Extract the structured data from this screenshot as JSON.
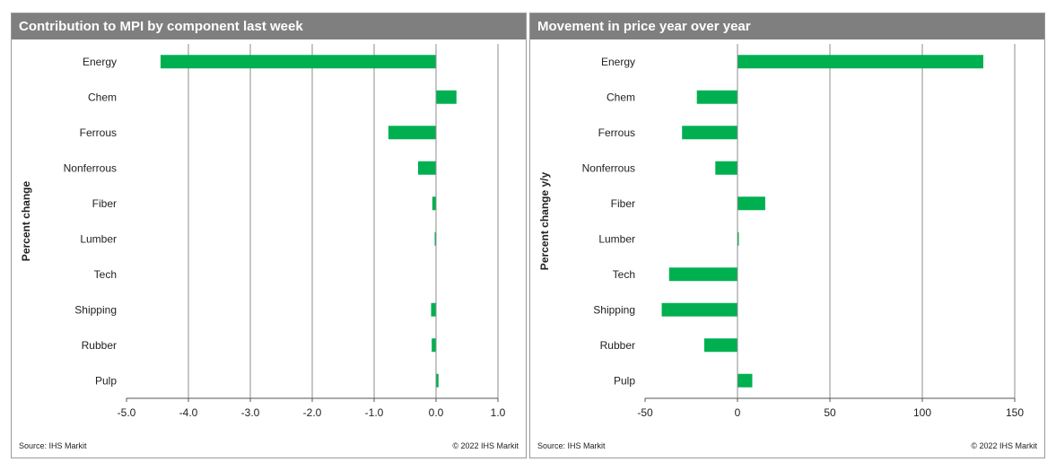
{
  "chart_data": [
    {
      "type": "bar",
      "orientation": "horizontal",
      "title": "Contribution to MPI by component last week",
      "xlabel": "",
      "ylabel": "Percent change",
      "categories": [
        "Energy",
        "Chem",
        "Ferrous",
        "Nonferrous",
        "Fiber",
        "Lumber",
        "Tech",
        "Shipping",
        "Rubber",
        "Pulp"
      ],
      "values": [
        -4.45,
        0.33,
        -0.77,
        -0.29,
        -0.06,
        -0.02,
        0.0,
        -0.08,
        -0.07,
        0.04
      ],
      "xlim": [
        -5.0,
        1.0
      ],
      "xticks": [
        -5.0,
        -4.0,
        -3.0,
        -2.0,
        -1.0,
        0.0,
        1.0
      ],
      "xtick_labels": [
        "-5.0",
        "-4.0",
        "-3.0",
        "-2.0",
        "-1.0",
        "0.0",
        "1.0"
      ],
      "grid": true,
      "bar_color": "#00b050",
      "source": "Source: IHS Markit",
      "copyright": "© 2022 IHS Markit"
    },
    {
      "type": "bar",
      "orientation": "horizontal",
      "title": "Movement in price year over year",
      "xlabel": "",
      "ylabel": "Percent change y/y",
      "categories": [
        "Energy",
        "Chem",
        "Ferrous",
        "Nonferrous",
        "Fiber",
        "Lumber",
        "Tech",
        "Shipping",
        "Rubber",
        "Pulp"
      ],
      "values": [
        133,
        -22,
        -30,
        -12,
        15,
        0.5,
        -37,
        -41,
        -18,
        8
      ],
      "xlim": [
        -50,
        150
      ],
      "xticks": [
        -50,
        0,
        50,
        100,
        150
      ],
      "xtick_labels": [
        "-50",
        "0",
        "50",
        "100",
        "150"
      ],
      "grid": true,
      "bar_color": "#00b050",
      "source": "Source: IHS Markit",
      "copyright": "© 2022 IHS Markit"
    }
  ]
}
